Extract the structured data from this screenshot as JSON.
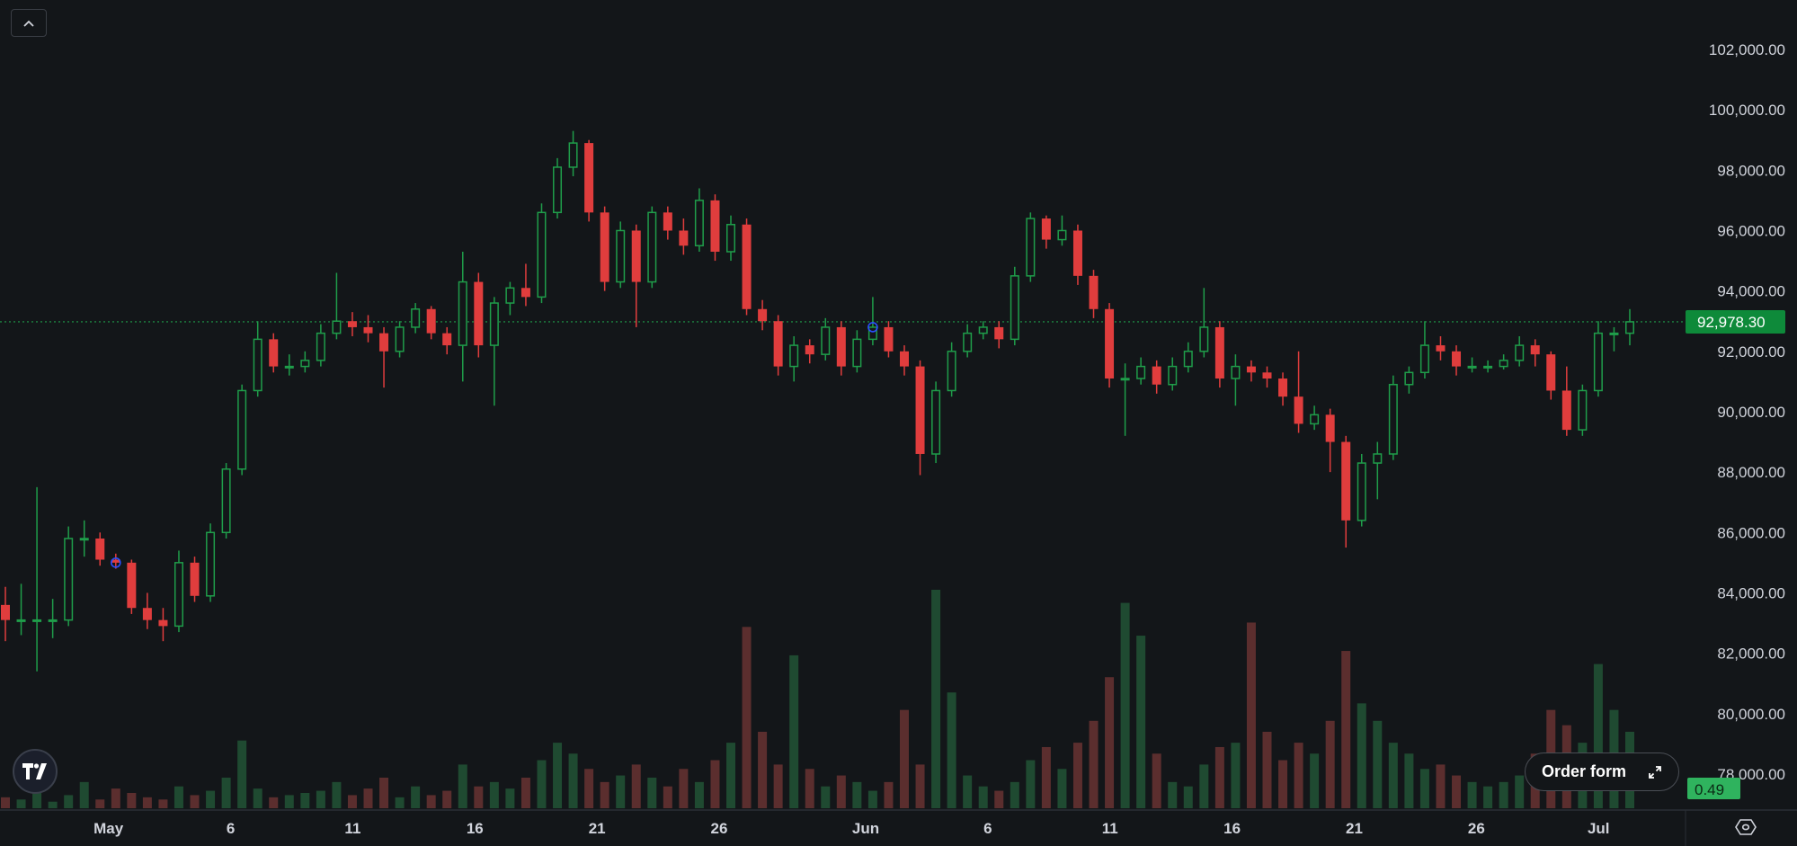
{
  "colors": {
    "background": "#131619",
    "up": "#1f9d4a",
    "down": "#e03d3d",
    "volume_up": "#1f4a31",
    "volume_down": "#5b2e2e",
    "last_price_tag": "#0e8a3a",
    "volume_tag": "#2fb35e",
    "marker": "#2b4fff"
  },
  "controls": {
    "collapse_icon": "chevron-up-icon",
    "order_form_label": "Order form",
    "order_form_icon": "expand-arrows-icon",
    "settings_icon": "hexagon-settings-icon",
    "logo_text": "TV"
  },
  "chart_data": {
    "type": "candlestick",
    "title": "",
    "xlabel": "",
    "ylabel": "",
    "ylim": [
      77000,
      103000
    ],
    "grid": false,
    "y_ticks": [
      "102,000.00",
      "100,000.00",
      "98,000.00",
      "96,000.00",
      "94,000.00",
      "92,000.00",
      "90,000.00",
      "88,000.00",
      "86,000.00",
      "84,000.00",
      "82,000.00",
      "80,000.00",
      "78,000.00"
    ],
    "y_tick_values": [
      102000,
      100000,
      98000,
      96000,
      94000,
      92000,
      90000,
      88000,
      86000,
      84000,
      82000,
      80000,
      78000
    ],
    "x_ticks": [
      "May",
      "6",
      "11",
      "16",
      "21",
      "26",
      "Jun",
      "6",
      "11",
      "16",
      "21",
      "26",
      "Jul"
    ],
    "last_price": 92978.3,
    "last_price_label": "92,978.30",
    "volume_label": "0.49",
    "candle_fields": [
      "open",
      "high",
      "low",
      "close",
      "volume"
    ],
    "candles_thousands": [
      [
        83.6,
        84.2,
        82.4,
        83.1,
        5
      ],
      [
        83.1,
        84.3,
        82.6,
        83.1,
        4
      ],
      [
        83.1,
        87.5,
        81.4,
        83.1,
        8
      ],
      [
        83.1,
        83.8,
        82.5,
        83.1,
        3
      ],
      [
        83.1,
        86.2,
        82.9,
        85.8,
        6
      ],
      [
        85.8,
        86.4,
        85.2,
        85.8,
        12
      ],
      [
        85.8,
        86.0,
        84.9,
        85.1,
        4
      ],
      [
        85.1,
        85.3,
        84.8,
        85.0,
        9
      ],
      [
        85.0,
        85.1,
        83.3,
        83.5,
        7
      ],
      [
        83.5,
        84.0,
        82.8,
        83.1,
        5
      ],
      [
        83.1,
        83.5,
        82.4,
        82.9,
        4
      ],
      [
        82.9,
        85.4,
        82.7,
        85.0,
        10
      ],
      [
        85.0,
        85.2,
        83.7,
        83.9,
        6
      ],
      [
        83.9,
        86.3,
        83.7,
        86.0,
        8
      ],
      [
        86.0,
        88.3,
        85.8,
        88.1,
        14
      ],
      [
        88.1,
        90.9,
        87.9,
        90.7,
        31
      ],
      [
        90.7,
        93.0,
        90.5,
        92.4,
        9
      ],
      [
        92.4,
        92.6,
        91.3,
        91.5,
        5
      ],
      [
        91.5,
        91.9,
        91.2,
        91.5,
        6
      ],
      [
        91.5,
        92.0,
        91.3,
        91.7,
        7
      ],
      [
        91.7,
        92.9,
        91.5,
        92.6,
        8
      ],
      [
        92.6,
        94.6,
        92.4,
        93.0,
        12
      ],
      [
        93.0,
        93.3,
        92.5,
        92.8,
        6
      ],
      [
        92.8,
        93.2,
        92.3,
        92.6,
        9
      ],
      [
        92.6,
        92.8,
        90.8,
        92.0,
        14
      ],
      [
        92.0,
        93.0,
        91.8,
        92.8,
        5
      ],
      [
        92.8,
        93.6,
        92.6,
        93.4,
        10
      ],
      [
        93.4,
        93.5,
        92.4,
        92.6,
        6
      ],
      [
        92.6,
        92.8,
        91.9,
        92.2,
        8
      ],
      [
        92.2,
        95.3,
        91.0,
        94.3,
        20
      ],
      [
        94.3,
        94.6,
        91.8,
        92.2,
        10
      ],
      [
        92.2,
        93.8,
        90.2,
        93.6,
        12
      ],
      [
        93.6,
        94.3,
        93.2,
        94.1,
        9
      ],
      [
        94.1,
        94.9,
        93.5,
        93.8,
        14
      ],
      [
        93.8,
        96.9,
        93.6,
        96.6,
        22
      ],
      [
        96.6,
        98.4,
        96.4,
        98.1,
        30
      ],
      [
        98.1,
        99.3,
        97.8,
        98.9,
        25
      ],
      [
        98.9,
        99.0,
        96.3,
        96.6,
        18
      ],
      [
        96.6,
        96.8,
        94.0,
        94.3,
        12
      ],
      [
        94.3,
        96.3,
        94.1,
        96.0,
        15
      ],
      [
        96.0,
        96.2,
        92.8,
        94.3,
        20
      ],
      [
        94.3,
        96.8,
        94.1,
        96.6,
        14
      ],
      [
        96.6,
        96.8,
        95.7,
        96.0,
        10
      ],
      [
        96.0,
        96.4,
        95.2,
        95.5,
        18
      ],
      [
        95.5,
        97.4,
        95.3,
        97.0,
        12
      ],
      [
        97.0,
        97.2,
        95.0,
        95.3,
        22
      ],
      [
        95.3,
        96.5,
        95.0,
        96.2,
        30
      ],
      [
        96.2,
        96.4,
        93.2,
        93.4,
        83
      ],
      [
        93.4,
        93.7,
        92.7,
        93.0,
        35
      ],
      [
        93.0,
        93.2,
        91.2,
        91.5,
        20
      ],
      [
        91.5,
        92.5,
        91.0,
        92.2,
        70
      ],
      [
        92.2,
        92.4,
        91.6,
        91.9,
        18
      ],
      [
        91.9,
        93.1,
        91.7,
        92.8,
        10
      ],
      [
        92.8,
        93.0,
        91.2,
        91.5,
        15
      ],
      [
        91.5,
        92.7,
        91.3,
        92.4,
        12
      ],
      [
        92.4,
        93.8,
        92.2,
        92.8,
        8
      ],
      [
        92.8,
        93.0,
        91.8,
        92.0,
        12
      ],
      [
        92.0,
        92.2,
        91.2,
        91.5,
        45
      ],
      [
        91.5,
        91.7,
        87.9,
        88.6,
        20
      ],
      [
        88.6,
        91.0,
        88.3,
        90.7,
        100
      ],
      [
        90.7,
        92.3,
        90.5,
        92.0,
        53
      ],
      [
        92.0,
        92.9,
        91.8,
        92.6,
        15
      ],
      [
        92.6,
        93.0,
        92.4,
        92.8,
        10
      ],
      [
        92.8,
        93.0,
        92.1,
        92.4,
        8
      ],
      [
        92.4,
        94.8,
        92.2,
        94.5,
        12
      ],
      [
        94.5,
        96.6,
        94.3,
        96.4,
        22
      ],
      [
        96.4,
        96.5,
        95.4,
        95.7,
        28
      ],
      [
        95.7,
        96.5,
        95.5,
        96.0,
        18
      ],
      [
        96.0,
        96.2,
        94.2,
        94.5,
        30
      ],
      [
        94.5,
        94.7,
        93.1,
        93.4,
        40
      ],
      [
        93.4,
        93.6,
        90.8,
        91.1,
        60
      ],
      [
        91.1,
        91.6,
        89.2,
        91.1,
        94
      ],
      [
        91.1,
        91.8,
        90.9,
        91.5,
        79
      ],
      [
        91.5,
        91.7,
        90.6,
        90.9,
        25
      ],
      [
        90.9,
        91.8,
        90.7,
        91.5,
        12
      ],
      [
        91.5,
        92.3,
        91.3,
        92.0,
        10
      ],
      [
        92.0,
        94.1,
        91.8,
        92.8,
        20
      ],
      [
        92.8,
        93.0,
        90.8,
        91.1,
        28
      ],
      [
        91.1,
        91.9,
        90.2,
        91.5,
        30
      ],
      [
        91.5,
        91.7,
        91.0,
        91.3,
        85
      ],
      [
        91.3,
        91.5,
        90.8,
        91.1,
        35
      ],
      [
        91.1,
        91.3,
        90.2,
        90.5,
        22
      ],
      [
        90.5,
        92.0,
        89.3,
        89.6,
        30
      ],
      [
        89.6,
        90.2,
        89.4,
        89.9,
        25
      ],
      [
        89.9,
        90.1,
        88.0,
        89.0,
        40
      ],
      [
        89.0,
        89.2,
        85.5,
        86.4,
        72
      ],
      [
        86.4,
        88.6,
        86.2,
        88.3,
        48
      ],
      [
        88.3,
        89.0,
        87.1,
        88.6,
        40
      ],
      [
        88.6,
        91.2,
        88.4,
        90.9,
        30
      ],
      [
        90.9,
        91.5,
        90.6,
        91.3,
        25
      ],
      [
        91.3,
        93.0,
        91.1,
        92.2,
        18
      ],
      [
        92.2,
        92.5,
        91.7,
        92.0,
        20
      ],
      [
        92.0,
        92.2,
        91.2,
        91.5,
        15
      ],
      [
        91.5,
        91.8,
        91.3,
        91.5,
        12
      ],
      [
        91.5,
        91.7,
        91.3,
        91.5,
        10
      ],
      [
        91.5,
        91.9,
        91.4,
        91.7,
        12
      ],
      [
        91.7,
        92.5,
        91.5,
        92.2,
        15
      ],
      [
        92.2,
        92.4,
        91.5,
        91.9,
        25
      ],
      [
        91.9,
        92.0,
        90.4,
        90.7,
        45
      ],
      [
        90.7,
        91.5,
        89.2,
        89.4,
        38
      ],
      [
        89.4,
        90.9,
        89.2,
        90.7,
        30
      ],
      [
        90.7,
        93.0,
        90.5,
        92.6,
        66
      ],
      [
        92.6,
        92.8,
        92.0,
        92.6,
        45
      ],
      [
        92.6,
        93.4,
        92.2,
        92.978,
        35
      ]
    ],
    "markers": [
      {
        "candle": 7,
        "type": "circle"
      },
      {
        "candle": 55,
        "type": "circle"
      }
    ]
  }
}
